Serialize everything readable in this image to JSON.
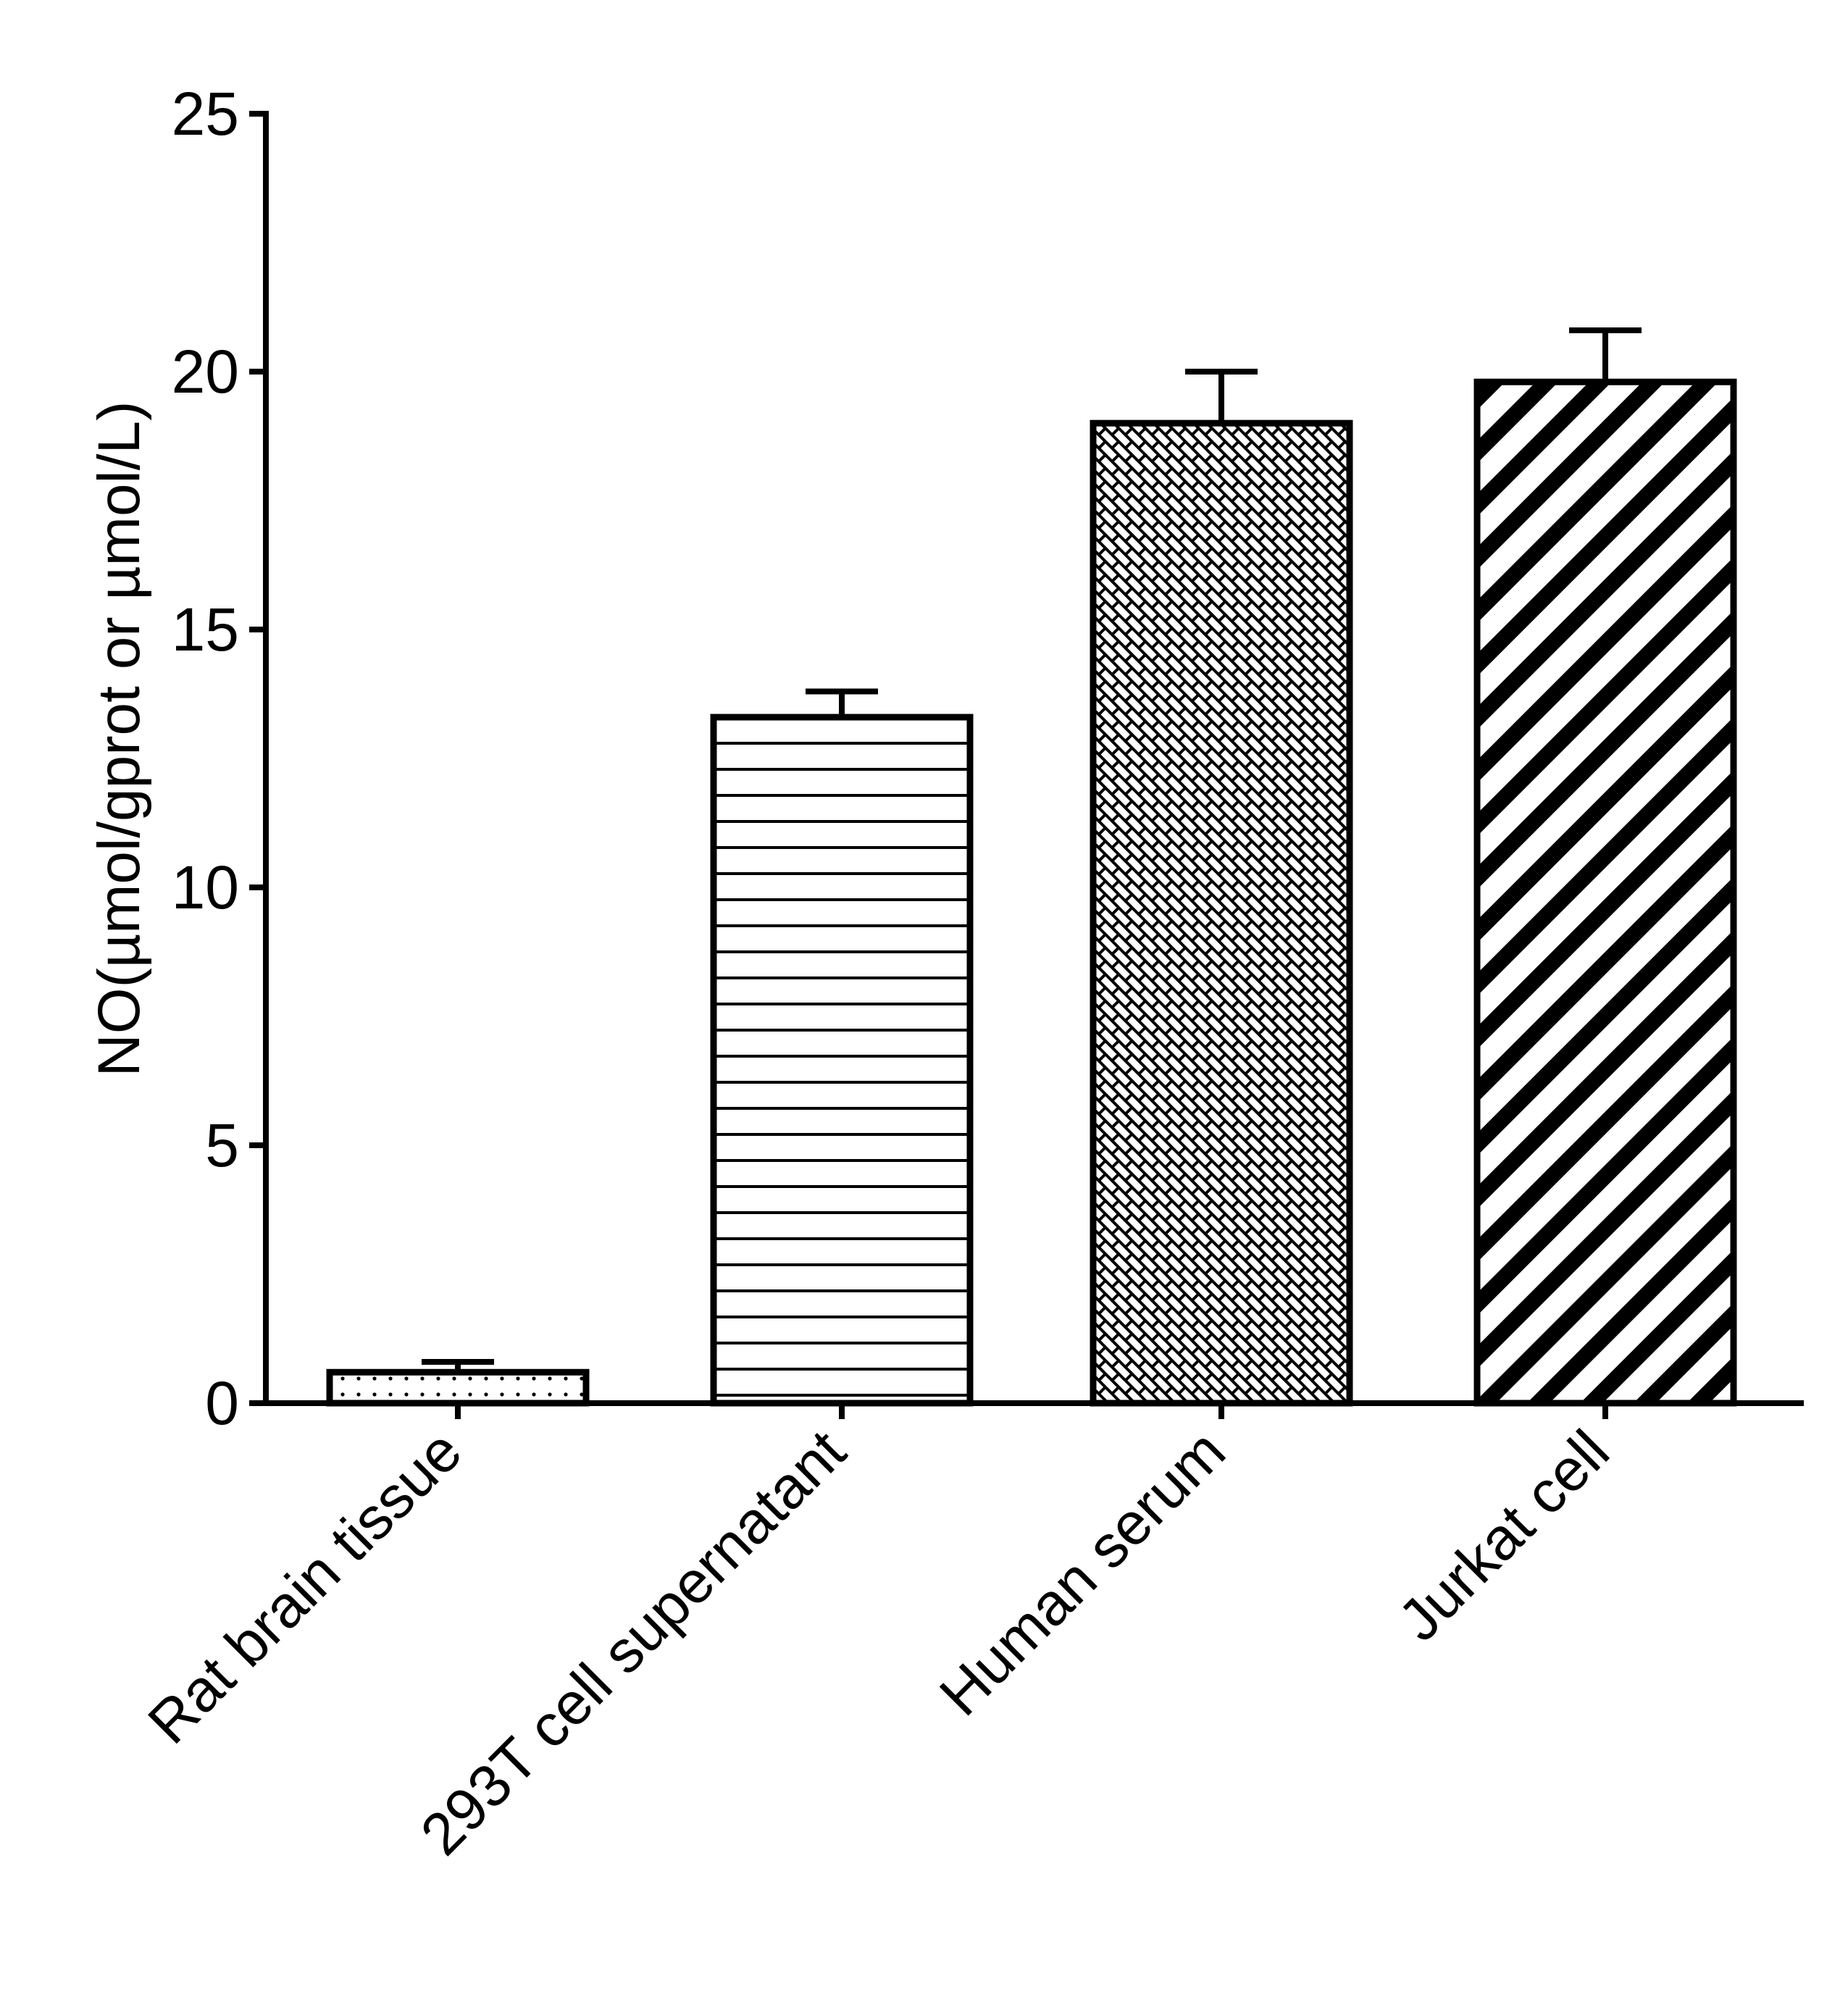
{
  "chart_data": {
    "type": "bar",
    "title": "",
    "xlabel": "",
    "ylabel": "NO(µmol/gprot or µmol/L)",
    "ylim": [
      0,
      25
    ],
    "yticks": [
      "0",
      "5",
      "10",
      "15",
      "20",
      "25"
    ],
    "grid": false,
    "categories": [
      "Rat brain tissue",
      "293T cell supernatant",
      "Human serum",
      "Jurkat cell"
    ],
    "values": [
      0.6,
      13.3,
      19.0,
      19.8
    ],
    "errors": [
      0.2,
      0.5,
      1.0,
      1.0
    ],
    "fill_patterns": [
      "dots",
      "horizontal-lines",
      "brick-crosshatch",
      "diagonal-stripes"
    ],
    "colors": {
      "ink": "#000000",
      "background": "#ffffff"
    }
  }
}
